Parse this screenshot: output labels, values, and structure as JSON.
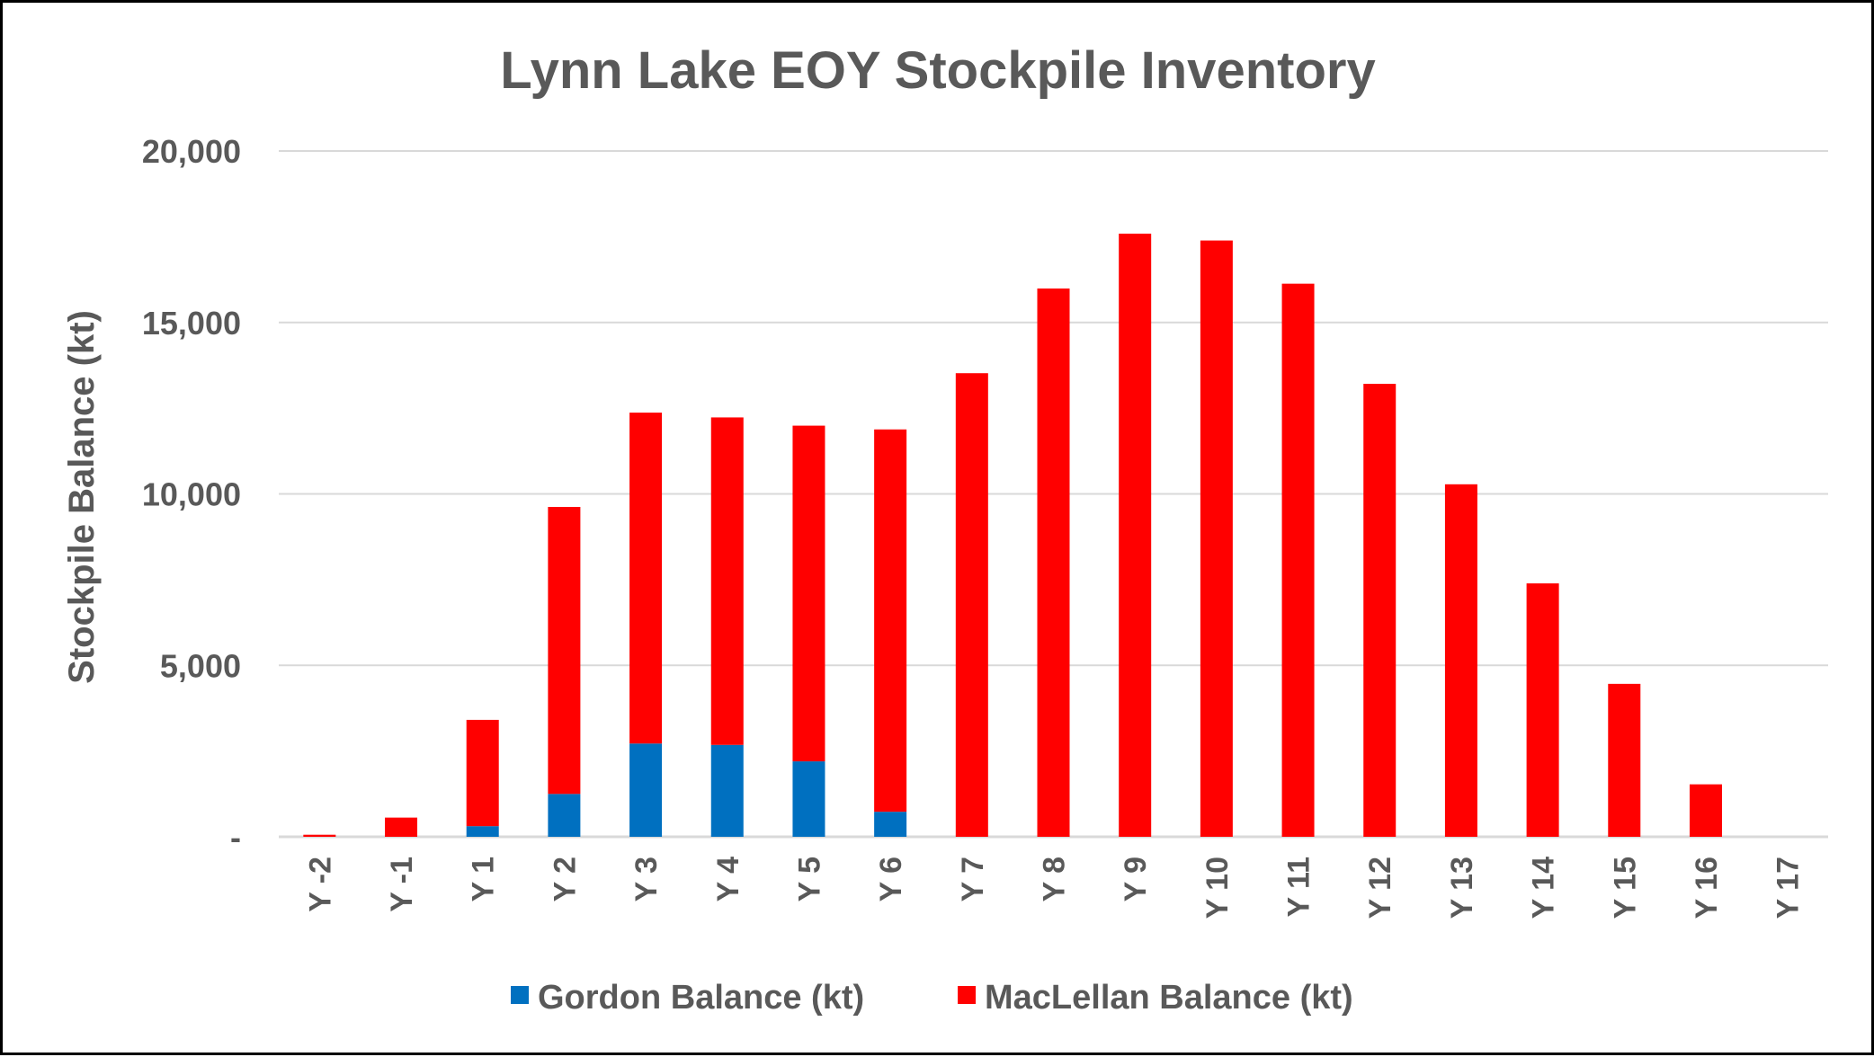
{
  "chart_data": {
    "type": "bar",
    "stacked": true,
    "title": "Lynn Lake EOY Stockpile Inventory",
    "xlabel": "",
    "ylabel": "Stockpile Balance (kt)",
    "ylim": [
      0,
      20000
    ],
    "yticks": [
      0,
      5000,
      10000,
      15000,
      20000
    ],
    "ytick_labels": [
      "-",
      "5,000",
      "10,000",
      "15,000",
      "20,000"
    ],
    "grid": true,
    "legend_position": "bottom",
    "categories": [
      "Y -2",
      "Y -1",
      "Y 1",
      "Y 2",
      "Y 3",
      "Y 4",
      "Y 5",
      "Y 6",
      "Y 7",
      "Y 8",
      "Y 9",
      "Y 10",
      "Y 11",
      "Y 12",
      "Y 13",
      "Y 14",
      "Y 15",
      "Y 16",
      "Y 17"
    ],
    "series": [
      {
        "name": "Gordon Balance (kt)",
        "color": "#0070C0",
        "values": [
          0,
          0,
          310,
          1250,
          2720,
          2680,
          2200,
          730,
          0,
          0,
          0,
          0,
          0,
          0,
          0,
          0,
          0,
          0,
          0
        ]
      },
      {
        "name": "MacLellan Balance (kt)",
        "color": "#FF0000",
        "values": [
          60,
          560,
          3100,
          8370,
          9650,
          9550,
          9790,
          11150,
          13520,
          15990,
          17590,
          17390,
          16130,
          13210,
          10280,
          7390,
          4460,
          1530,
          0
        ]
      }
    ]
  }
}
